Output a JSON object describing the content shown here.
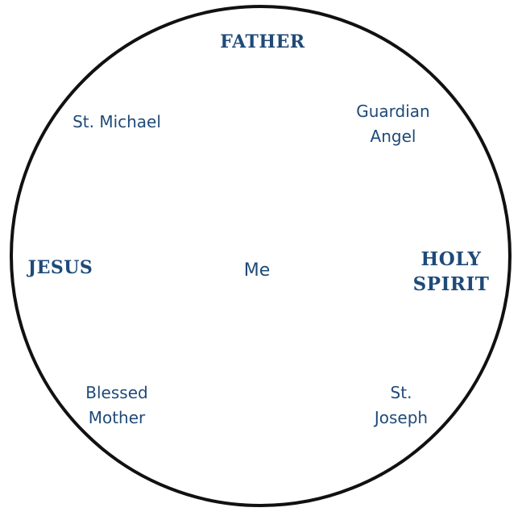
{
  "diagram": {
    "nodes": {
      "father": "FATHER",
      "st_michael": "St. Michael",
      "guardian_angel": [
        "Guardian",
        "Angel"
      ],
      "jesus": "JESUS",
      "me": "Me",
      "holy_spirit": [
        "HOLY",
        "SPIRIT"
      ],
      "blessed_mother": [
        "Blessed",
        "Mother"
      ],
      "st_joseph": [
        "St.",
        "Joseph"
      ]
    },
    "colors": {
      "text": "#1f4a78",
      "circle_outline": "#111111",
      "background": "#ffffff"
    }
  }
}
